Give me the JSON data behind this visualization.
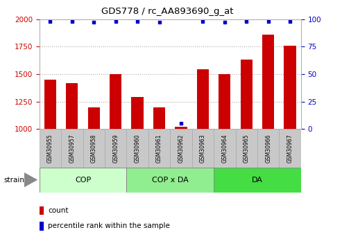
{
  "title": "GDS778 / rc_AA893690_g_at",
  "samples": [
    "GSM30955",
    "GSM30957",
    "GSM30958",
    "GSM30959",
    "GSM30960",
    "GSM30961",
    "GSM30962",
    "GSM30963",
    "GSM30964",
    "GSM30965",
    "GSM30966",
    "GSM30967"
  ],
  "counts": [
    1450,
    1420,
    1200,
    1500,
    1290,
    1200,
    1020,
    1545,
    1500,
    1630,
    1860,
    1760
  ],
  "percentiles": [
    98,
    98,
    97,
    98,
    98,
    97,
    5,
    98,
    97,
    98,
    98,
    98
  ],
  "groups": [
    {
      "name": "COP",
      "start": 0,
      "end": 4,
      "color": "#ccffcc"
    },
    {
      "name": "COP x DA",
      "start": 4,
      "end": 8,
      "color": "#90ee90"
    },
    {
      "name": "DA",
      "start": 8,
      "end": 12,
      "color": "#44dd44"
    }
  ],
  "ylim_left": [
    1000,
    2000
  ],
  "ylim_right": [
    0,
    100
  ],
  "yticks_left": [
    1000,
    1250,
    1500,
    1750,
    2000
  ],
  "yticks_right": [
    0,
    25,
    50,
    75,
    100
  ],
  "bar_color": "#cc0000",
  "dot_color": "#0000cc",
  "bar_width": 0.55,
  "background_plot": "#ffffff",
  "background_samples": "#c8c8c8",
  "group_border_color": "#888888",
  "legend_square_size": 0.012
}
